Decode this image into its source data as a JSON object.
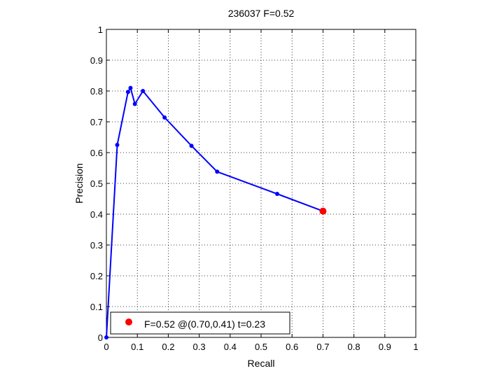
{
  "chart_data": {
    "type": "line",
    "title": "236037 F=0.52",
    "xlabel": "Recall",
    "ylabel": "Precision",
    "xlim": [
      0,
      1
    ],
    "ylim": [
      0,
      1
    ],
    "xticks": [
      "0",
      "0.1",
      "0.2",
      "0.3",
      "0.4",
      "0.5",
      "0.6",
      "0.7",
      "0.8",
      "0.9",
      "1"
    ],
    "yticks": [
      "0",
      "0.1",
      "0.2",
      "0.3",
      "0.4",
      "0.5",
      "0.6",
      "0.7",
      "0.8",
      "0.9",
      "1"
    ],
    "grid": true,
    "series": [
      {
        "color": "#0000ff",
        "x": [
          0.0,
          0.035,
          0.07,
          0.078,
          0.092,
          0.118,
          0.188,
          0.275,
          0.358,
          0.552,
          0.7
        ],
        "y": [
          0.0,
          0.625,
          0.797,
          0.81,
          0.758,
          0.8,
          0.714,
          0.622,
          0.538,
          0.466,
          0.41
        ]
      }
    ],
    "best_point": {
      "x": 0.7,
      "y": 0.41,
      "color": "#ff0000"
    },
    "legend": {
      "position": "bottom-left",
      "label": "F=0.52 @(0.70,0.41) t=0.23",
      "color": "#ff0000"
    }
  }
}
